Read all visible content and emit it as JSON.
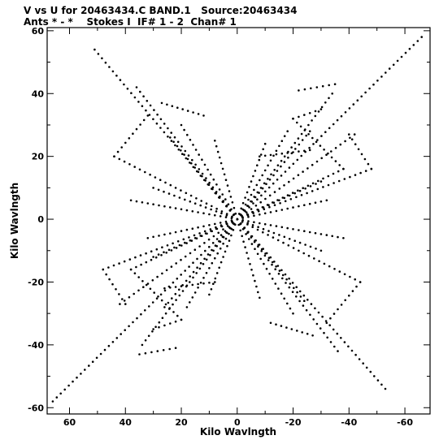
{
  "chart_data": {
    "type": "scatter",
    "title_line1": "V vs U for 20463434.C BAND.1   Source:20463434",
    "title_line2": "Ants * - *    Stokes I  IF# 1 - 2  Chan# 1",
    "xlabel": "Kilo Wavlngth",
    "ylabel": "Kilo Wavlngth",
    "xlim": [
      68,
      -69
    ],
    "ylim": [
      -62,
      61
    ],
    "x_ticks": [
      60,
      40,
      20,
      0,
      -20,
      -40,
      -60
    ],
    "y_ticks": [
      60,
      40,
      20,
      0,
      -20,
      -40,
      -60
    ],
    "grid": false,
    "marker_color": "#000000",
    "tracks": [
      {
        "from": [
          -66,
          58
        ],
        "to": [
          0,
          0
        ]
      },
      {
        "from": [
          66,
          -58
        ],
        "to": [
          0,
          0
        ]
      },
      {
        "from": [
          51,
          54
        ],
        "to": [
          0,
          0
        ]
      },
      {
        "from": [
          -53,
          -54
        ],
        "to": [
          0,
          0
        ]
      },
      {
        "from": [
          -22,
          41
        ],
        "to": [
          -35,
          43
        ]
      },
      {
        "from": [
          22,
          -41
        ],
        "to": [
          35,
          -43
        ]
      },
      {
        "from": [
          27,
          37
        ],
        "to": [
          12,
          33
        ]
      },
      {
        "from": [
          -27,
          -37
        ],
        "to": [
          -12,
          -33
        ]
      },
      {
        "from": [
          -20,
          32
        ],
        "to": [
          -30,
          35
        ]
      },
      {
        "from": [
          20,
          -32
        ],
        "to": [
          30,
          -35
        ]
      },
      {
        "from": [
          -8,
          20
        ],
        "to": [
          -26,
          22
        ]
      },
      {
        "from": [
          8,
          -20
        ],
        "to": [
          26,
          -22
        ]
      },
      {
        "from": [
          44,
          20
        ],
        "to": [
          0,
          0
        ]
      },
      {
        "from": [
          -44,
          -20
        ],
        "to": [
          0,
          0
        ]
      },
      {
        "from": [
          -38,
          16
        ],
        "to": [
          0,
          0
        ]
      },
      {
        "from": [
          38,
          -16
        ],
        "to": [
          0,
          0
        ]
      },
      {
        "from": [
          48,
          -16
        ],
        "to": [
          0,
          0
        ]
      },
      {
        "from": [
          -48,
          16
        ],
        "to": [
          0,
          0
        ]
      },
      {
        "from": [
          36,
          42
        ],
        "to": [
          0,
          0
        ]
      },
      {
        "from": [
          -36,
          -42
        ],
        "to": [
          0,
          0
        ]
      },
      {
        "from": [
          -34,
          40
        ],
        "to": [
          0,
          0
        ]
      },
      {
        "from": [
          34,
          -40
        ],
        "to": [
          0,
          0
        ]
      },
      {
        "from": [
          20,
          30
        ],
        "to": [
          0,
          0
        ]
      },
      {
        "from": [
          -20,
          -30
        ],
        "to": [
          0,
          0
        ]
      },
      {
        "from": [
          -18,
          28
        ],
        "to": [
          0,
          0
        ]
      },
      {
        "from": [
          18,
          -28
        ],
        "to": [
          0,
          0
        ]
      },
      {
        "from": [
          42,
          -27
        ],
        "to": [
          0,
          0
        ]
      },
      {
        "from": [
          -42,
          27
        ],
        "to": [
          0,
          0
        ]
      },
      {
        "from": [
          30,
          10
        ],
        "to": [
          0,
          0
        ]
      },
      {
        "from": [
          -30,
          -10
        ],
        "to": [
          0,
          0
        ]
      },
      {
        "from": [
          30,
          -12
        ],
        "to": [
          0,
          0
        ]
      },
      {
        "from": [
          -30,
          12
        ],
        "to": [
          0,
          0
        ]
      },
      {
        "from": [
          38,
          6
        ],
        "to": [
          0,
          0
        ]
      },
      {
        "from": [
          -38,
          -6
        ],
        "to": [
          0,
          0
        ]
      },
      {
        "from": [
          -32,
          6
        ],
        "to": [
          0,
          0
        ]
      },
      {
        "from": [
          32,
          -6
        ],
        "to": [
          0,
          0
        ]
      },
      {
        "from": [
          -10,
          24
        ],
        "to": [
          0,
          0
        ]
      },
      {
        "from": [
          10,
          -24
        ],
        "to": [
          0,
          0
        ]
      },
      {
        "from": [
          8,
          25
        ],
        "to": [
          0,
          0
        ]
      },
      {
        "from": [
          -8,
          -25
        ],
        "to": [
          0,
          0
        ]
      },
      {
        "from": [
          24,
          26
        ],
        "to": [
          0,
          0
        ]
      },
      {
        "from": [
          -24,
          -26
        ],
        "to": [
          0,
          0
        ]
      },
      {
        "from": [
          -26,
          28
        ],
        "to": [
          0,
          0
        ]
      },
      {
        "from": [
          26,
          -28
        ],
        "to": [
          0,
          0
        ]
      },
      {
        "from": [
          44,
          20
        ],
        "to": [
          32,
          33
        ]
      },
      {
        "from": [
          -44,
          -20
        ],
        "to": [
          -32,
          -33
        ]
      },
      {
        "from": [
          -38,
          16
        ],
        "to": [
          -20,
          32
        ]
      },
      {
        "from": [
          38,
          -16
        ],
        "to": [
          20,
          -32
        ]
      },
      {
        "from": [
          48,
          -16
        ],
        "to": [
          40,
          -27
        ]
      },
      {
        "from": [
          -48,
          16
        ],
        "to": [
          -40,
          27
        ]
      }
    ]
  }
}
